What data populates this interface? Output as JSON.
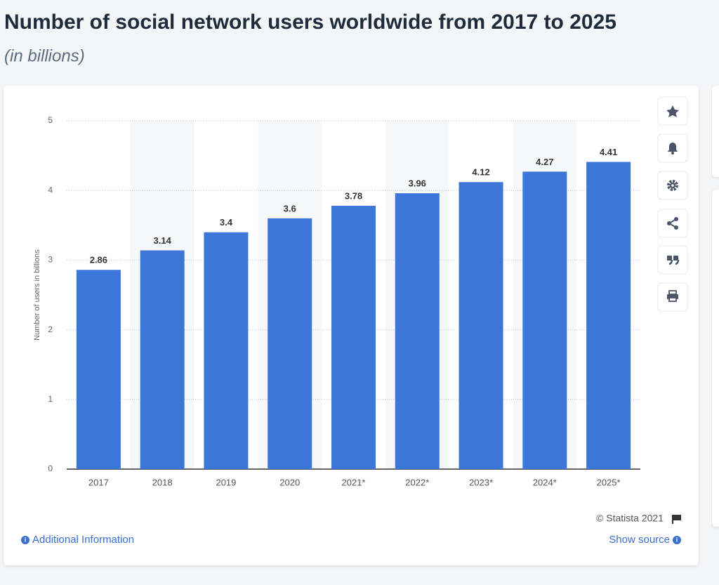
{
  "chart_data": {
    "type": "bar",
    "title": "Number of social network users worldwide from 2017 to 2025",
    "subtitle": "(in billions)",
    "y_label": "Number of users in billions",
    "categories": [
      "2017",
      "2018",
      "2019",
      "2020",
      "2021*",
      "2022*",
      "2023*",
      "2024*",
      "2025*"
    ],
    "values": [
      2.86,
      3.14,
      3.4,
      3.6,
      3.78,
      3.96,
      4.12,
      4.27,
      4.41
    ],
    "color": "#3b76d8",
    "ylim": [
      0,
      5
    ],
    "yticks": [
      0,
      1,
      2,
      3,
      4,
      5
    ],
    "grid": true
  },
  "footer": {
    "copyright": "© Statista 2021",
    "additional_info": "Additional Information",
    "show_source": "Show source"
  }
}
